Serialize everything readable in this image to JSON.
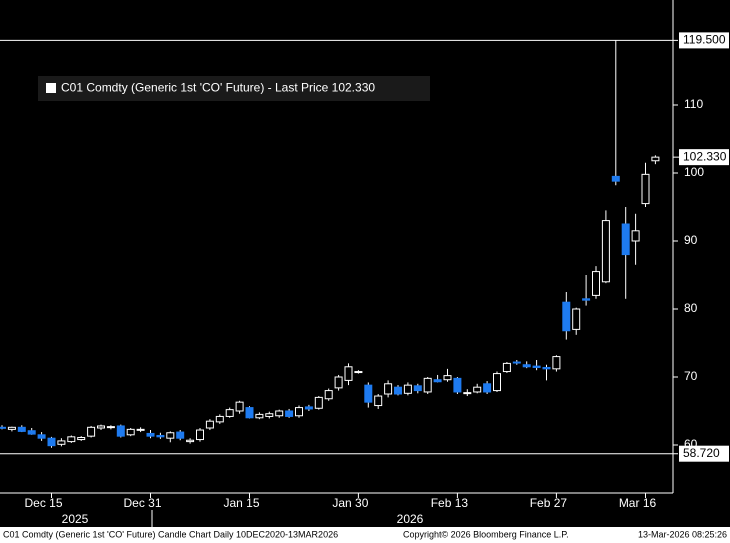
{
  "chart_data": {
    "type": "candlestick",
    "legend": "C01 Comdty (Generic 1st 'CO' Future) - Last Price 102.330",
    "footer": {
      "left": "C01 Comdty (Generic 1st 'CO' Future) Candle Chart Daily 10DEC2020-13MAR2026",
      "center": "Copyright© 2026 Bloomberg Finance L.P.",
      "right": "13-Mar-2026 08:25:26"
    },
    "categories": [
      null,
      null,
      null,
      null,
      null,
      "Dec 15",
      null,
      null,
      null,
      null,
      null,
      null,
      null,
      null,
      null,
      "Dec 31",
      null,
      null,
      null,
      null,
      null,
      null,
      null,
      null,
      null,
      "Jan 15",
      null,
      null,
      null,
      null,
      null,
      null,
      null,
      null,
      null,
      null,
      "Jan 30",
      null,
      null,
      null,
      null,
      null,
      null,
      null,
      null,
      null,
      "Feb 13",
      null,
      null,
      null,
      null,
      null,
      null,
      null,
      null,
      null,
      "Feb 27",
      null,
      null,
      null,
      null,
      null,
      null,
      null,
      null,
      "Mar 16",
      null
    ],
    "years": [
      "2025",
      "2026"
    ],
    "open": [
      62.6,
      62.3,
      62.6,
      62.1,
      61.5,
      61.0,
      60.1,
      60.5,
      60.8,
      61.3,
      62.5,
      62.6,
      62.8,
      61.5,
      62.2,
      61.7,
      61.4,
      61.0,
      61.9,
      60.5,
      60.8,
      62.5,
      63.4,
      64.2,
      65.0,
      65.5,
      64.0,
      64.2,
      64.3,
      65.0,
      64.3,
      65.6,
      65.4,
      66.8,
      68.4,
      69.5,
      70.8,
      68.8,
      65.8,
      67.5,
      68.5,
      67.6,
      68.7,
      67.8,
      69.6,
      69.6,
      69.8,
      67.6,
      67.8,
      69.0,
      68.0,
      70.8,
      72.2,
      71.8,
      71.6,
      71.4,
      71.2,
      81.0,
      77.0,
      81.5,
      82.0,
      84.0,
      99.5,
      92.5,
      90.0,
      95.5,
      101.8
    ],
    "high": [
      62.9,
      62.7,
      62.9,
      62.5,
      61.9,
      61.2,
      61.0,
      61.4,
      61.3,
      62.8,
      63.0,
      62.9,
      63.0,
      62.5,
      62.6,
      62.2,
      61.8,
      62.0,
      62.2,
      61.0,
      62.5,
      63.8,
      64.5,
      65.5,
      66.5,
      65.7,
      64.8,
      64.9,
      65.2,
      65.3,
      65.8,
      65.9,
      67.2,
      68.3,
      70.3,
      72.0,
      71.0,
      69.2,
      67.5,
      69.5,
      68.8,
      69.2,
      69.0,
      70.0,
      70.3,
      71.2,
      70.0,
      68.2,
      69.0,
      69.4,
      70.8,
      72.2,
      72.5,
      72.3,
      72.5,
      71.8,
      73.2,
      82.5,
      80.2,
      85.0,
      86.3,
      94.5,
      119.5,
      95.0,
      94.0,
      101.5,
      102.6
    ],
    "low": [
      62.3,
      62.0,
      61.9,
      61.5,
      60.6,
      59.6,
      59.8,
      60.3,
      60.6,
      61.1,
      62.2,
      62.3,
      61.1,
      61.3,
      61.9,
      61.0,
      60.9,
      60.4,
      60.7,
      60.2,
      60.5,
      62.2,
      63.1,
      64.0,
      64.6,
      63.9,
      63.8,
      63.9,
      64.0,
      64.0,
      64.0,
      65.0,
      65.2,
      66.5,
      68.0,
      68.8,
      70.5,
      65.5,
      65.3,
      67.0,
      67.3,
      67.3,
      67.6,
      67.5,
      69.2,
      69.3,
      67.5,
      67.2,
      67.6,
      67.5,
      67.8,
      70.6,
      71.8,
      71.3,
      71.0,
      69.5,
      70.8,
      75.5,
      76.2,
      80.5,
      81.5,
      83.8,
      98.2,
      81.5,
      86.5,
      95.0,
      101.3
    ],
    "close": [
      62.5,
      62.6,
      62.0,
      61.6,
      61.0,
      59.9,
      60.6,
      61.2,
      61.1,
      62.6,
      62.8,
      62.7,
      61.3,
      62.3,
      62.3,
      61.3,
      61.2,
      61.8,
      61.0,
      60.7,
      62.2,
      63.5,
      64.2,
      65.2,
      66.3,
      64.0,
      64.5,
      64.6,
      65.0,
      64.2,
      65.5,
      65.3,
      67.0,
      68.0,
      70.0,
      71.5,
      70.8,
      66.3,
      67.2,
      69.0,
      67.5,
      68.8,
      68.0,
      69.8,
      69.3,
      70.2,
      67.8,
      67.7,
      68.5,
      67.8,
      70.5,
      72.0,
      72.1,
      71.5,
      71.4,
      71.2,
      73.0,
      76.8,
      80.0,
      81.3,
      85.5,
      93.0,
      98.8,
      88.0,
      91.5,
      99.8,
      102.33
    ],
    "up_color": "#ffffff",
    "down_color": "#1e7bf0",
    "ylim": [
      52.94,
      125.44
    ],
    "yticks": [
      60,
      70,
      80,
      90,
      100,
      110
    ],
    "last_price": {
      "value": 102.33,
      "label": "102.330"
    },
    "hlines": [
      {
        "value": 119.5,
        "label": "119.500"
      },
      {
        "value": 58.72,
        "label": "58.720"
      }
    ]
  }
}
